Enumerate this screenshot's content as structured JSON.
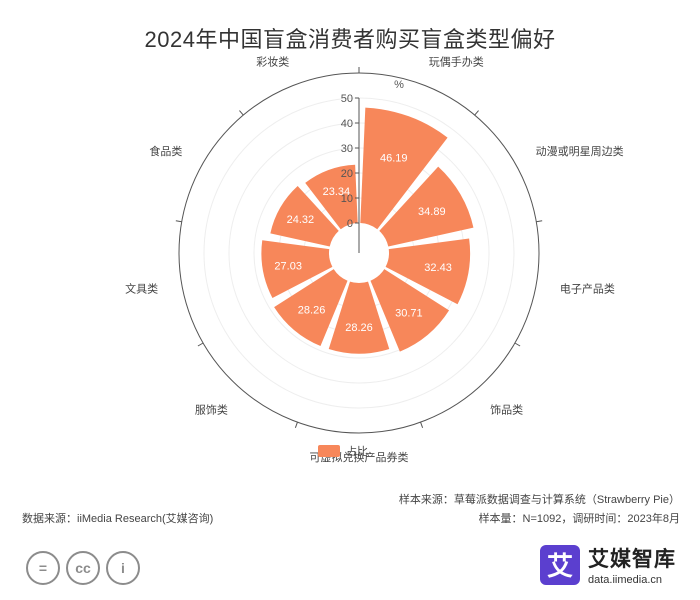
{
  "title": "2024年中国盲盒消费者购买盲盒类型偏好",
  "chart_data": {
    "type": "bar",
    "subtype": "polar-bar",
    "categories": [
      "玩偶手办类",
      "动漫或明星周边类",
      "电子产品类",
      "饰品类",
      "可虚拟兑换产品券类",
      "服饰类",
      "文具类",
      "食品类",
      "彩妆类"
    ],
    "series": [
      {
        "name": "占比",
        "values": [
          46.19,
          34.89,
          32.43,
          30.71,
          28.26,
          28.26,
          27.03,
          24.32,
          23.34
        ],
        "color": "#f7875a"
      }
    ],
    "radial_axis": {
      "unit": "%",
      "ticks": [
        0,
        10,
        20,
        30,
        40,
        50
      ],
      "range": [
        0,
        50
      ]
    },
    "legend": {
      "position": "bottom",
      "label": "占比"
    }
  },
  "footer": {
    "sample_source": "样本来源：草莓派数据调查与计算系统（Strawberry Pie）",
    "sample_size": "样本量：N=1092，调研时间：2023年8月",
    "data_source": "数据来源：iiMedia Research(艾媒咨询)"
  },
  "license_icons": [
    "equal-icon",
    "cc-icon",
    "person-icon"
  ],
  "license_glyphs": [
    "=",
    "cc",
    "i"
  ],
  "brand": {
    "logo_char": "艾",
    "name": "艾媒智库",
    "url": "data.iimedia.cn"
  },
  "colors": {
    "bar": "#f7875a",
    "brand": "#5b3fcf"
  }
}
